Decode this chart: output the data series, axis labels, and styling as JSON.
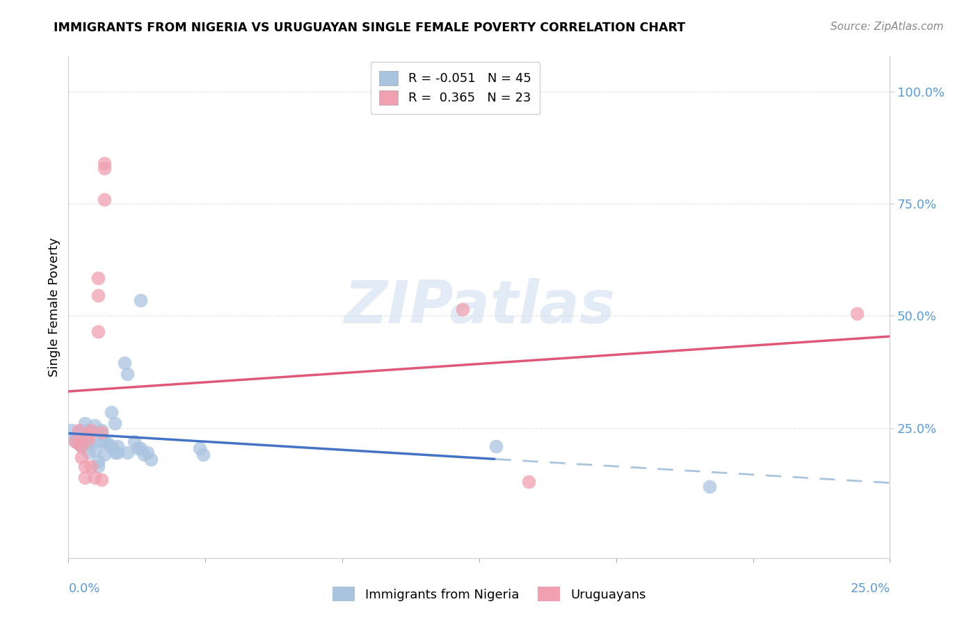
{
  "title": "IMMIGRANTS FROM NIGERIA VS URUGUAYAN SINGLE FEMALE POVERTY CORRELATION CHART",
  "source": "Source: ZipAtlas.com",
  "ylabel": "Single Female Poverty",
  "xlim": [
    0.0,
    0.25
  ],
  "ylim": [
    -0.04,
    1.08
  ],
  "ytick_positions": [
    0.25,
    0.5,
    0.75,
    1.0
  ],
  "ytick_labels": [
    "25.0%",
    "50.0%",
    "75.0%",
    "100.0%"
  ],
  "xtick_labels": [
    "0.0%",
    "25.0%"
  ],
  "nigeria_points": [
    [
      0.001,
      0.245
    ],
    [
      0.002,
      0.23
    ],
    [
      0.002,
      0.22
    ],
    [
      0.003,
      0.24
    ],
    [
      0.003,
      0.215
    ],
    [
      0.004,
      0.245
    ],
    [
      0.004,
      0.21
    ],
    [
      0.005,
      0.26
    ],
    [
      0.005,
      0.235
    ],
    [
      0.005,
      0.225
    ],
    [
      0.006,
      0.245
    ],
    [
      0.006,
      0.22
    ],
    [
      0.006,
      0.195
    ],
    [
      0.007,
      0.24
    ],
    [
      0.007,
      0.215
    ],
    [
      0.008,
      0.255
    ],
    [
      0.008,
      0.2
    ],
    [
      0.009,
      0.175
    ],
    [
      0.009,
      0.165
    ],
    [
      0.01,
      0.245
    ],
    [
      0.01,
      0.235
    ],
    [
      0.01,
      0.22
    ],
    [
      0.011,
      0.22
    ],
    [
      0.011,
      0.19
    ],
    [
      0.012,
      0.215
    ],
    [
      0.013,
      0.285
    ],
    [
      0.013,
      0.21
    ],
    [
      0.014,
      0.26
    ],
    [
      0.014,
      0.195
    ],
    [
      0.015,
      0.21
    ],
    [
      0.015,
      0.195
    ],
    [
      0.017,
      0.395
    ],
    [
      0.018,
      0.37
    ],
    [
      0.018,
      0.195
    ],
    [
      0.02,
      0.22
    ],
    [
      0.021,
      0.205
    ],
    [
      0.022,
      0.535
    ],
    [
      0.022,
      0.205
    ],
    [
      0.023,
      0.19
    ],
    [
      0.024,
      0.195
    ],
    [
      0.025,
      0.18
    ],
    [
      0.04,
      0.205
    ],
    [
      0.041,
      0.19
    ],
    [
      0.13,
      0.21
    ],
    [
      0.195,
      0.12
    ]
  ],
  "uruguay_points": [
    [
      0.002,
      0.22
    ],
    [
      0.003,
      0.245
    ],
    [
      0.003,
      0.215
    ],
    [
      0.004,
      0.21
    ],
    [
      0.004,
      0.185
    ],
    [
      0.005,
      0.165
    ],
    [
      0.005,
      0.14
    ],
    [
      0.006,
      0.235
    ],
    [
      0.006,
      0.225
    ],
    [
      0.007,
      0.245
    ],
    [
      0.007,
      0.165
    ],
    [
      0.008,
      0.14
    ],
    [
      0.009,
      0.585
    ],
    [
      0.009,
      0.545
    ],
    [
      0.009,
      0.465
    ],
    [
      0.01,
      0.24
    ],
    [
      0.01,
      0.135
    ],
    [
      0.011,
      0.84
    ],
    [
      0.011,
      0.83
    ],
    [
      0.011,
      0.76
    ],
    [
      0.12,
      0.515
    ],
    [
      0.14,
      0.13
    ],
    [
      0.24,
      0.505
    ]
  ],
  "nigeria_color": "#aac4e0",
  "uruguay_color": "#f0a0b0",
  "nigeria_line_color": "#4472c4",
  "uruguay_line_color": "#e05878",
  "watermark": "ZIPatlas",
  "background_color": "#ffffff",
  "grid_color": "#e0e0e0",
  "tick_color": "#5b9bd5",
  "legend1_label1": "R = -0.051   N = 45",
  "legend1_label2": "R =  0.365   N = 23",
  "legend2_label1": "Immigrants from Nigeria",
  "legend2_label2": "Uruguayans"
}
